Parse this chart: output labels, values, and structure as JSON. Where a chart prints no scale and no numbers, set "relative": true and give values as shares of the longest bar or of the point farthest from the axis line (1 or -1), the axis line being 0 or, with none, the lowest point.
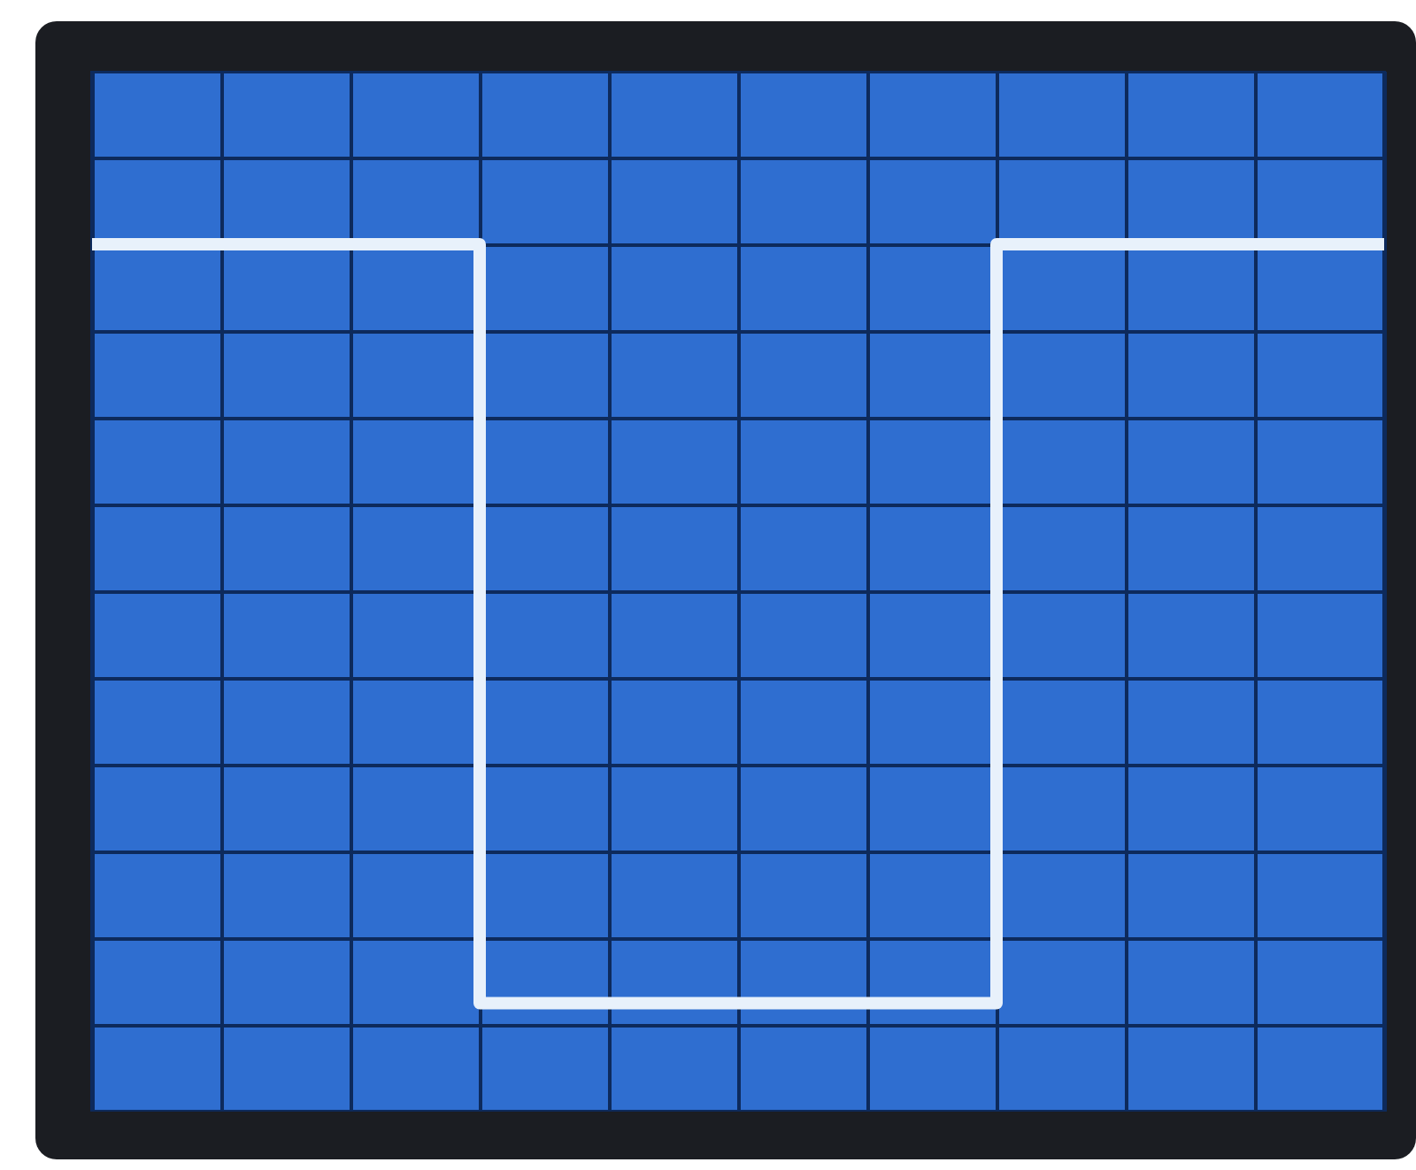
{
  "chart_data": {
    "type": "step",
    "relative": true,
    "grid": true,
    "categories": [
      null,
      null,
      null,
      null,
      null,
      null,
      null,
      null,
      null,
      null,
      null
    ],
    "series": [
      {
        "color": "#e8f1fb",
        "values": [
          1,
          1,
          1,
          -0.75,
          -0.75,
          -0.75,
          -0.75,
          1,
          1,
          1,
          1
        ]
      }
    ]
  }
}
